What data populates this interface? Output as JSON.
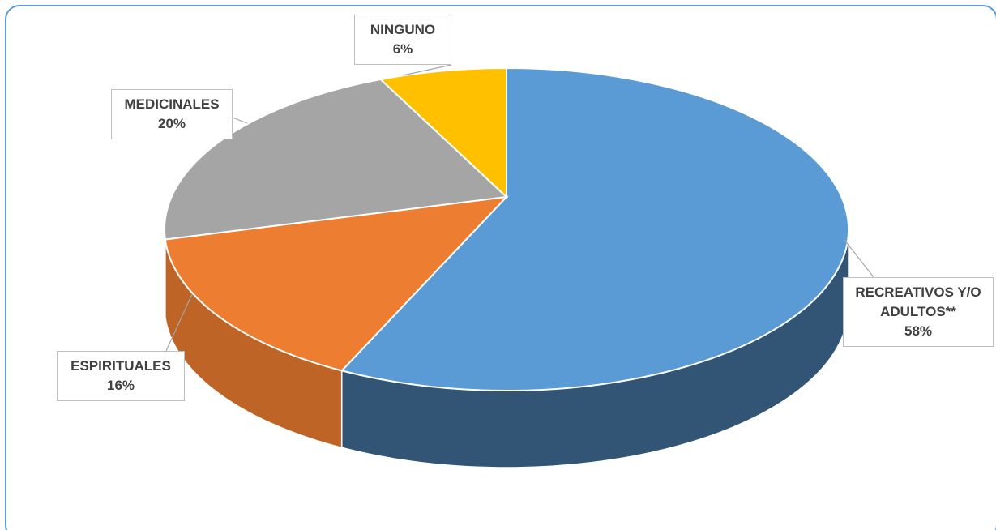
{
  "chart_data": {
    "type": "pie",
    "categories": [
      "RECREATIVOS Y/O ADULTOS**",
      "ESPIRITUALES",
      "MEDICINALES",
      "NINGUNO"
    ],
    "values": [
      58,
      16,
      20,
      6
    ],
    "value_labels": [
      "58%",
      "16%",
      "20%",
      "6%"
    ],
    "colors": [
      "#5b9bd5",
      "#ed7d31",
      "#a5a5a5",
      "#ffc000"
    ]
  }
}
